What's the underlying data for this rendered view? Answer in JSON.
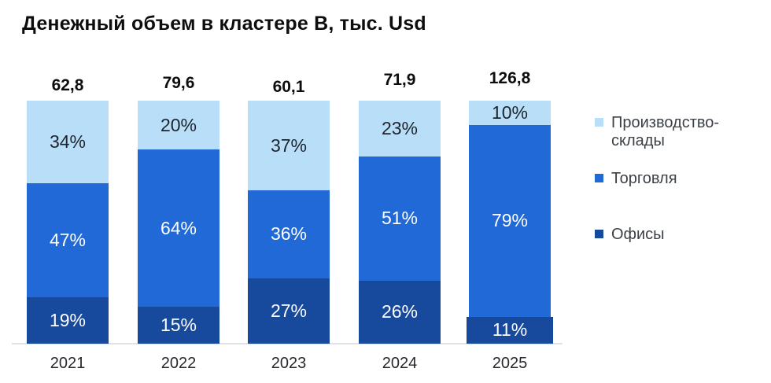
{
  "chart_data": {
    "type": "bar",
    "variant": "stacked-100-percent",
    "title": "Денежный объем в кластере В, тыс. Usd",
    "categories": [
      "2021",
      "2022",
      "2023",
      "2024",
      "2025"
    ],
    "totals": [
      "62,8",
      "79,6",
      "60,1",
      "71,9",
      "126,8"
    ],
    "series": [
      {
        "name": "Производство-склады",
        "color": "#b9dff8",
        "label_color": "#1e242e",
        "values": [
          34,
          20,
          37,
          23,
          10
        ]
      },
      {
        "name": "Торговля",
        "color": "#2169d6",
        "label_color": "#ffffff",
        "values": [
          47,
          64,
          36,
          51,
          79
        ]
      },
      {
        "name": "Офисы",
        "color": "#17499d",
        "label_color": "#ffffff",
        "values": [
          19,
          15,
          27,
          26,
          11
        ]
      }
    ],
    "value_suffix": "%",
    "legend_position": "right",
    "grid": false,
    "x_axis_line_color": "#e2e2e2",
    "ylim": [
      0,
      100
    ]
  }
}
